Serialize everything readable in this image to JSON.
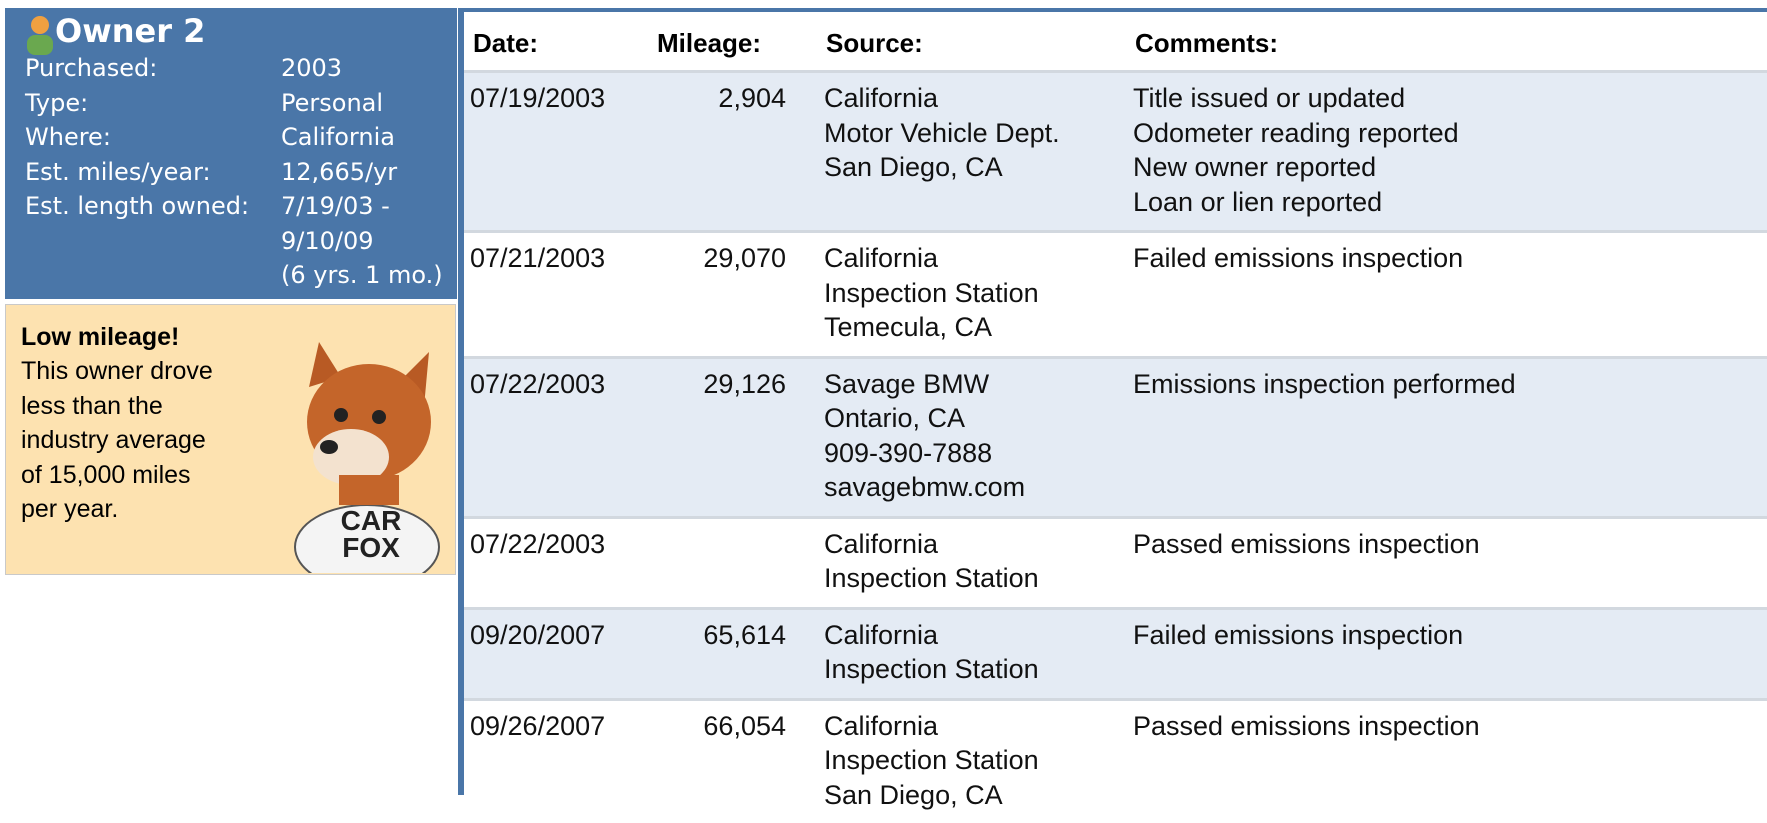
{
  "owner": {
    "title": "Owner 2",
    "details": [
      {
        "label": "Purchased:",
        "value": [
          "2003"
        ]
      },
      {
        "label": "Type:",
        "value": [
          "Personal"
        ]
      },
      {
        "label": "Where:",
        "value": [
          "California"
        ]
      },
      {
        "label": "Est. miles/year:",
        "value": [
          "12,665/yr"
        ]
      },
      {
        "label": "Est. length owned:",
        "value": [
          "7/19/03 -",
          "9/10/09",
          "(6 yrs. 1 mo.)"
        ]
      }
    ]
  },
  "callout": {
    "title": "Low mileage!",
    "text": [
      "This owner drove",
      "less than the",
      "industry average",
      "of 15,000 miles",
      "per year."
    ],
    "shirt": [
      "CAR",
      "FOX"
    ]
  },
  "table": {
    "header": [
      "Date:",
      "Mileage:",
      "Source:",
      "Comments:"
    ],
    "rows": [
      {
        "date": "07/19/2003",
        "mileage": "2,904",
        "source": [
          "California",
          "Motor Vehicle Dept.",
          "San Diego, CA"
        ],
        "comments": [
          "Title issued or updated",
          "Odometer reading reported",
          "New owner reported",
          "Loan or lien reported"
        ]
      },
      {
        "date": "07/21/2003",
        "mileage": "29,070",
        "source": [
          "California",
          "Inspection Station",
          "Temecula, CA"
        ],
        "comments": [
          "Failed emissions inspection"
        ]
      },
      {
        "date": "07/22/2003",
        "mileage": "29,126",
        "source": [
          "Savage BMW",
          "Ontario, CA",
          "909-390-7888",
          "savagebmw.com"
        ],
        "comments": [
          "Emissions inspection performed"
        ]
      },
      {
        "date": "07/22/2003",
        "mileage": null,
        "source": [
          "California",
          "Inspection Station"
        ],
        "comments": [
          "Passed emissions inspection"
        ]
      },
      {
        "date": "09/20/2007",
        "mileage": "65,614",
        "source": [
          "California",
          "Inspection Station"
        ],
        "comments": [
          "Failed emissions inspection"
        ]
      },
      {
        "date": "09/26/2007",
        "mileage": "66,054",
        "source": [
          "California",
          "Inspection Station",
          "San Diego, CA"
        ],
        "comments": [
          "Passed emissions inspection"
        ]
      }
    ]
  }
}
